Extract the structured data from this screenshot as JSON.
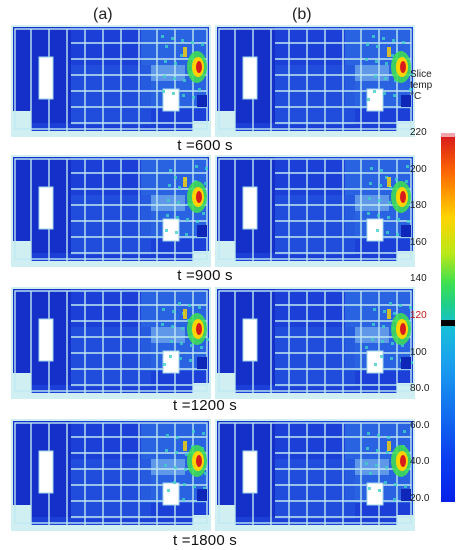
{
  "columns": [
    {
      "id": "a",
      "label": "(a)"
    },
    {
      "id": "b",
      "label": "(b)"
    }
  ],
  "rows": [
    {
      "time_label": "t =600 s"
    },
    {
      "time_label": "t =900 s"
    },
    {
      "time_label": "t =1200 s"
    },
    {
      "time_label": "t =1800 s"
    }
  ],
  "legend": {
    "title_lines": [
      "Slice",
      "temp",
      "°C"
    ],
    "ticks": [
      "220",
      "200",
      "180",
      "160",
      "140",
      "120",
      "100",
      "80.0",
      "60.0",
      "40.0",
      "20.0"
    ],
    "highlighted_tick": "120",
    "range": [
      20,
      220
    ],
    "marker_value": 118,
    "colors": {
      "hot": "#d81c1c",
      "mid": "#3ee050",
      "cold": "#0620ea",
      "marker": "#000000",
      "highlight": "#c01818"
    }
  }
}
